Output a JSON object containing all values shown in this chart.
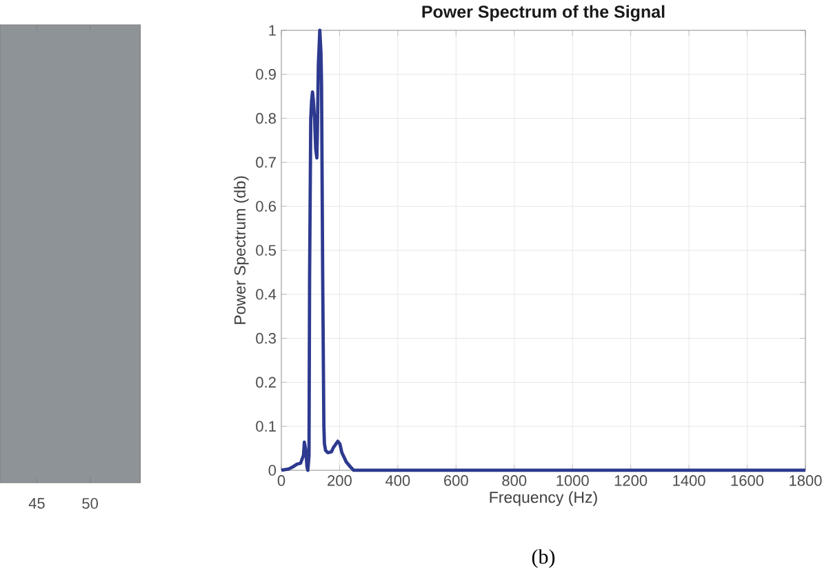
{
  "chart_data": [
    {
      "type": "other",
      "annotations": [
        "45",
        "50"
      ]
    },
    {
      "type": "line",
      "title": "Power Spectrum of the Signal",
      "xlabel": "Frequency (Hz)",
      "ylabel": "Power Spectrum (db)",
      "x": [
        0,
        25,
        40,
        54,
        66,
        76,
        79,
        84,
        88,
        91,
        95,
        97,
        101,
        104,
        107,
        110,
        114,
        118,
        122,
        124,
        127,
        132,
        136,
        138,
        142,
        146,
        148,
        152,
        160,
        172,
        179,
        194,
        201,
        208,
        223,
        237,
        248,
        400,
        600,
        800,
        1000,
        1200,
        1400,
        1600,
        1800
      ],
      "values": [
        0,
        0.003,
        0.008,
        0.014,
        0.016,
        0.034,
        0.064,
        0.045,
        0.008,
        0,
        0.034,
        0.44,
        0.8,
        0.84,
        0.86,
        0.84,
        0.8,
        0.73,
        0.71,
        0.78,
        0.92,
        1.0,
        0.95,
        0.88,
        0.44,
        0.1,
        0.06,
        0.045,
        0.04,
        0.042,
        0.052,
        0.066,
        0.06,
        0.04,
        0.019,
        0.008,
        0,
        0,
        0,
        0,
        0,
        0,
        0,
        0,
        0
      ],
      "color": "#2d3a8f",
      "xlim": [
        0,
        1800
      ],
      "ylim": [
        0,
        1
      ],
      "xticks": [
        0,
        200,
        400,
        600,
        800,
        1000,
        1200,
        1400,
        1600,
        1800
      ],
      "yticks": [
        0,
        0.1,
        0.2,
        0.3,
        0.4,
        0.5,
        0.6,
        0.7,
        0.8,
        0.9,
        1
      ],
      "grid": true,
      "annotations": [
        "(b)"
      ]
    }
  ]
}
